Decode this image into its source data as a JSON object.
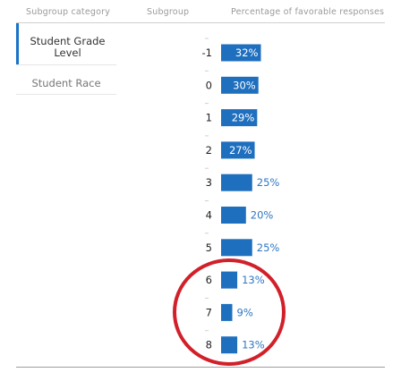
{
  "header": {
    "subgroup_category": "Subgroup category",
    "subgroup": "Subgroup",
    "percentage": "Percentage of favorable responses"
  },
  "categories": [
    {
      "label": "Student Grade Level",
      "selected": true
    },
    {
      "label": "Student Race",
      "selected": false
    }
  ],
  "chart_data": {
    "type": "bar",
    "orientation": "horizontal",
    "categories": [
      "-1",
      "0",
      "1",
      "2",
      "3",
      "4",
      "5",
      "6",
      "7",
      "8"
    ],
    "values": [
      32,
      30,
      29,
      27,
      25,
      20,
      25,
      13,
      9,
      13
    ],
    "value_labels": [
      "32%",
      "30%",
      "29%",
      "27%",
      "25%",
      "20%",
      "25%",
      "13%",
      "9%",
      "13%"
    ],
    "xlim": [
      0,
      100
    ],
    "bar_color": "#1f6fbf",
    "annotation": {
      "type": "circle",
      "color": "#d2202a",
      "highlights": [
        "6",
        "7",
        "8"
      ]
    }
  }
}
